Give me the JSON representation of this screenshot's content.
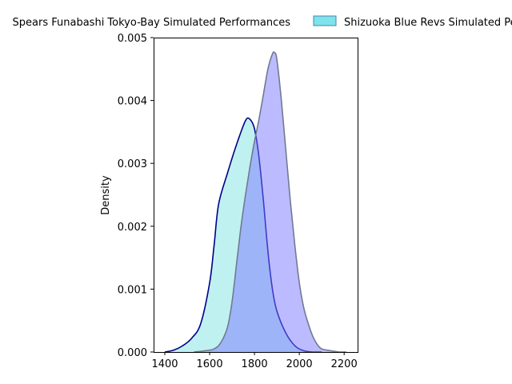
{
  "chart_data": {
    "type": "area",
    "title": "",
    "xlabel": "",
    "ylabel": "Density",
    "xlim": [
      1350,
      2260
    ],
    "ylim": [
      0,
      0.005
    ],
    "xticks": [
      1400,
      1600,
      1800,
      2000,
      2200
    ],
    "yticks": [
      0.0,
      0.001,
      0.002,
      0.003,
      0.004,
      0.005
    ],
    "ytick_labels": [
      "0.000",
      "0.001",
      "0.002",
      "0.003",
      "0.004",
      "0.005"
    ],
    "grid": false,
    "legend_position": "top, outside plot area",
    "series": [
      {
        "name": "Spears Funabashi Tokyo-Bay Simulated Performances",
        "fill": "#8ce6e6",
        "fill_opacity": 0.55,
        "line": "#00008b",
        "x": [
          1400,
          1440,
          1480,
          1520,
          1560,
          1600,
          1620,
          1640,
          1680,
          1720,
          1760,
          1780,
          1800,
          1820,
          1840,
          1860,
          1880,
          1900,
          1940,
          1980,
          2020,
          2060,
          2100
        ],
        "values": [
          0.0,
          3e-05,
          0.0001,
          0.00022,
          0.00045,
          0.0011,
          0.0017,
          0.00235,
          0.00285,
          0.0033,
          0.00368,
          0.0037,
          0.00355,
          0.0031,
          0.0024,
          0.0016,
          0.001,
          0.00065,
          0.0003,
          0.0001,
          2e-05,
          0.0,
          0.0
        ]
      },
      {
        "name": "Shizuoka Blue Revs Simulated Performances",
        "fill": "#7b78ff",
        "fill_opacity": 0.5,
        "line": "#6f7b91",
        "x": [
          1530,
          1580,
          1620,
          1650,
          1680,
          1700,
          1720,
          1740,
          1760,
          1780,
          1800,
          1820,
          1840,
          1860,
          1880,
          1890,
          1900,
          1920,
          1940,
          1960,
          1980,
          2000,
          2020,
          2040,
          2060,
          2080,
          2100,
          2140,
          2180,
          2210
        ],
        "values": [
          0.0,
          2e-05,
          5e-05,
          0.00015,
          0.0004,
          0.0008,
          0.0014,
          0.002,
          0.0025,
          0.00295,
          0.00335,
          0.0037,
          0.0041,
          0.0045,
          0.00474,
          0.00476,
          0.00465,
          0.004,
          0.0032,
          0.0024,
          0.0017,
          0.0011,
          0.0007,
          0.00045,
          0.00025,
          0.00012,
          5e-05,
          2e-05,
          0.0,
          0.0
        ]
      }
    ]
  }
}
